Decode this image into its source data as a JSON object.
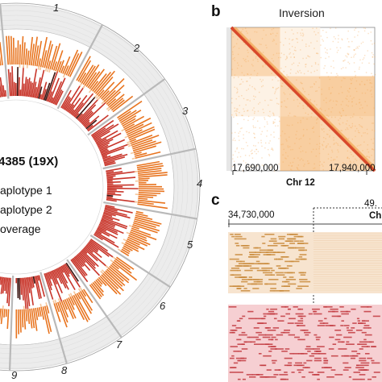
{
  "panel_a": {
    "sample_label": "4385 (19X)",
    "legend": [
      "aplotype 1",
      "aplotype 2",
      "overage"
    ],
    "chromosome_labels": [
      "1",
      "2",
      "3",
      "4",
      "5",
      "6",
      "7",
      "8",
      "9"
    ],
    "colors": {
      "track_bg": "#ececec",
      "orange": "#e8741f",
      "red": "#c8352a",
      "dark": "#3b1410",
      "light_orange": "#f6c79c"
    }
  },
  "panel_b": {
    "letter": "b",
    "title": "Inversion",
    "x_tick_left": "17,690,000",
    "x_tick_right": "17,940,000",
    "x_label": "Chr 12",
    "colors": {
      "diagonal": "#d53a1e",
      "block": "#f3a652",
      "bg": "#fdf1e2"
    }
  },
  "panel_c": {
    "letter": "c",
    "left_coordinate": "34,730,000",
    "right_coordinate_partial": "49.",
    "chr_partial": "Ch",
    "colors": {
      "top_band": "#f7e4cf",
      "top_reads": "#c98a3a",
      "bottom_band": "#f6cfd2",
      "bottom_reads": "#c23a3f"
    }
  }
}
